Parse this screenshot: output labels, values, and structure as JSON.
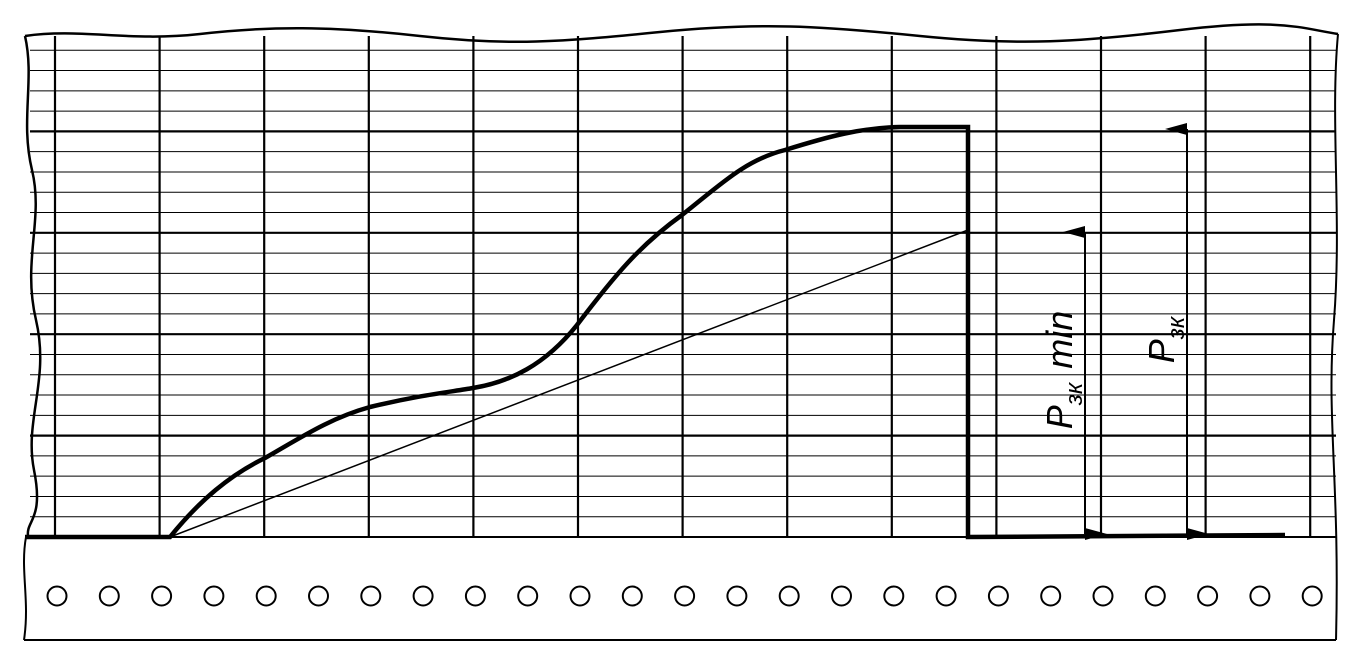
{
  "labels": [
    {
      "main": "P",
      "sub": "зк",
      "suffix": "min"
    },
    {
      "main": "P",
      "sub": "зк"
    }
  ]
}
